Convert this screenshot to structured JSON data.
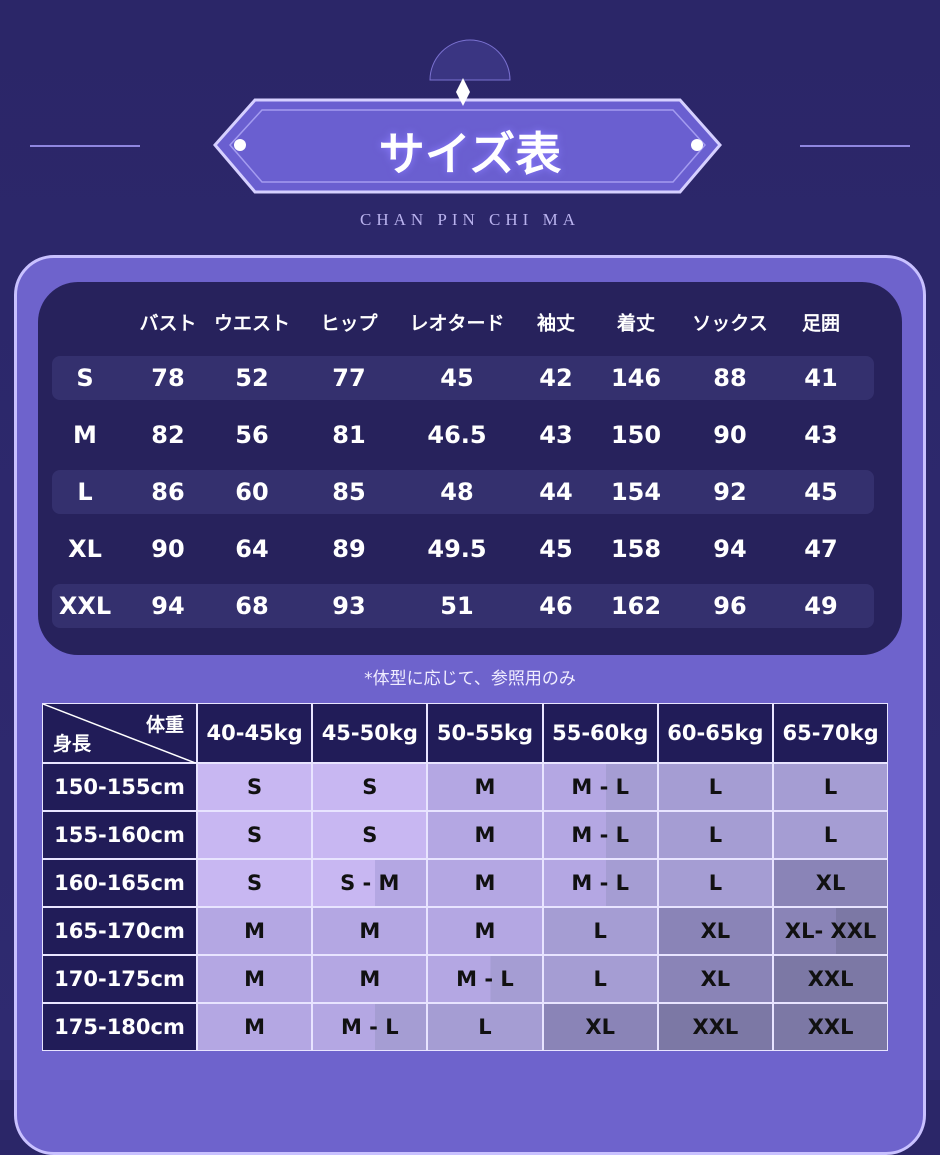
{
  "header": {
    "title": "サイズ表",
    "subtitle": "CHAN PIN CHI MA"
  },
  "size_table": {
    "headers": [
      "バスト",
      "ウエスト",
      "ヒップ",
      "レオタード",
      "袖丈",
      "着丈",
      "ソックス",
      "足囲"
    ],
    "rows": [
      {
        "size": "S",
        "values": [
          78,
          52,
          77,
          45,
          42,
          146,
          88,
          41
        ]
      },
      {
        "size": "M",
        "values": [
          82,
          56,
          81,
          46.5,
          43,
          150,
          90,
          43
        ]
      },
      {
        "size": "L",
        "values": [
          86,
          60,
          85,
          48,
          44,
          154,
          92,
          45
        ]
      },
      {
        "size": "XL",
        "values": [
          90,
          64,
          89,
          49.5,
          45,
          158,
          94,
          47
        ]
      },
      {
        "size": "XXL",
        "values": [
          94,
          68,
          93,
          51,
          46,
          162,
          96,
          49
        ]
      }
    ]
  },
  "note": "*体型に応じて、参照用のみ",
  "fit_table": {
    "corner_weight": "体重",
    "corner_height": "身長",
    "weights": [
      "40-45kg",
      "45-50kg",
      "50-55kg",
      "55-60kg",
      "60-65kg",
      "65-70kg"
    ],
    "rows": [
      {
        "height": "150-155cm",
        "sizes": [
          "S",
          "S",
          "M",
          "M - L",
          "L",
          "L"
        ]
      },
      {
        "height": "155-160cm",
        "sizes": [
          "S",
          "S",
          "M",
          "M - L",
          "L",
          "L"
        ]
      },
      {
        "height": "160-165cm",
        "sizes": [
          "S",
          "S - M",
          "M",
          "M - L",
          "L",
          "XL"
        ]
      },
      {
        "height": "165-170cm",
        "sizes": [
          "M",
          "M",
          "M",
          "L",
          "XL",
          "XL- XXL"
        ]
      },
      {
        "height": "170-175cm",
        "sizes": [
          "M",
          "M",
          "M - L",
          "L",
          "XL",
          "XXL"
        ]
      },
      {
        "height": "175-180cm",
        "sizes": [
          "M",
          "M - L",
          "L",
          "XL",
          "XXL",
          "XXL"
        ]
      }
    ]
  }
}
